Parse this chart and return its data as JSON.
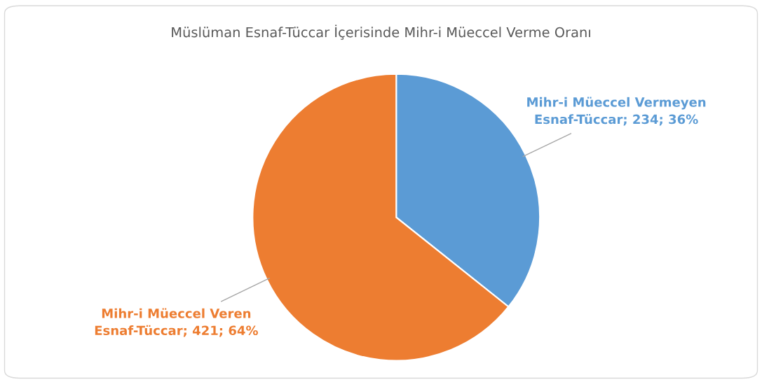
{
  "chart_data": {
    "type": "pie",
    "title": "Müslüman Esnaf-Tüccar İçerisinde Mihr-i Müeccel Verme Oranı",
    "categories": [
      "Mihr-i Müeccel Vermeyen Esnaf-Tüccar",
      "Mihr-i Müeccel Veren Esnaf-Tüccar"
    ],
    "values": [
      234,
      421
    ],
    "value_labels": [
      "234; 36%",
      "421; 64%"
    ],
    "colors": [
      "#5b9bd5",
      "#ed7d31"
    ],
    "legend": false
  }
}
